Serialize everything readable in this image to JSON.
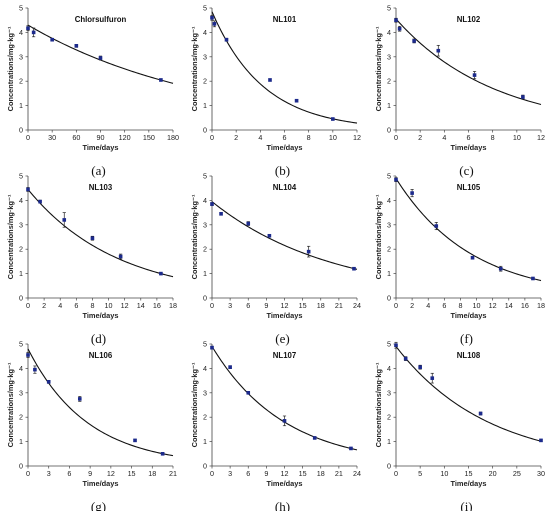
{
  "colors": {
    "fit_line": "#111111",
    "marker": "#1c2a8c",
    "axis": "#444444",
    "error_bar": "#222222"
  },
  "chart_data": [
    {
      "type": "scatter",
      "title": "Chlorsulfuron",
      "panel_label": "(a)",
      "xlabel": "Time/days",
      "ylabel": "Concentrations/mg·kg⁻¹",
      "xlim": [
        0,
        180
      ],
      "ylim": [
        0,
        5
      ],
      "xticks": [
        0,
        30,
        60,
        90,
        120,
        150,
        180
      ],
      "yticks": [
        0,
        1,
        2,
        3,
        4,
        5
      ],
      "points": [
        [
          0,
          4.17
        ],
        [
          7,
          4.0
        ],
        [
          30,
          3.7
        ],
        [
          60,
          3.45
        ],
        [
          90,
          2.95
        ],
        [
          165,
          2.05
        ]
      ],
      "errors": [
        0.1,
        0.18,
        0.05,
        0.06,
        0.08,
        0.05
      ],
      "fit": {
        "c0": 4.3,
        "k": 0.0045
      }
    },
    {
      "type": "scatter",
      "title": "NL101",
      "panel_label": "(b)",
      "xlabel": "Time/days",
      "ylabel": "Concentrations/mg·kg⁻¹",
      "xlim": [
        0,
        12
      ],
      "ylim": [
        0,
        5
      ],
      "xticks": [
        0,
        2,
        4,
        6,
        8,
        10,
        12
      ],
      "yticks": [
        0,
        1,
        2,
        3,
        4,
        5
      ],
      "points": [
        [
          0,
          4.6
        ],
        [
          0.2,
          4.35
        ],
        [
          1.2,
          3.7
        ],
        [
          4.8,
          2.05
        ],
        [
          7,
          1.2
        ],
        [
          10,
          0.45
        ]
      ],
      "errors": [
        0.1,
        0.12,
        0.06,
        0.05,
        0.05,
        0.04
      ],
      "fit": {
        "c0": 4.85,
        "k": 0.236
      }
    },
    {
      "type": "scatter",
      "title": "NL102",
      "panel_label": "(c)",
      "xlabel": "Time/days",
      "ylabel": "Concentrations/mg·kg⁻¹",
      "xlim": [
        0,
        12
      ],
      "ylim": [
        0,
        5
      ],
      "xticks": [
        0,
        2,
        4,
        6,
        8,
        10,
        12
      ],
      "yticks": [
        0,
        1,
        2,
        3,
        4,
        5
      ],
      "points": [
        [
          0,
          4.5
        ],
        [
          0.3,
          4.15
        ],
        [
          1.5,
          3.65
        ],
        [
          3.5,
          3.25
        ],
        [
          6.5,
          2.25
        ],
        [
          10.5,
          1.35
        ]
      ],
      "errors": [
        0.08,
        0.1,
        0.08,
        0.22,
        0.15,
        0.08
      ],
      "fit": {
        "c0": 4.55,
        "k": 0.1225
      }
    },
    {
      "type": "scatter",
      "title": "NL103",
      "panel_label": "(d)",
      "xlabel": "Time/days",
      "ylabel": "Concentrations/mg·kg⁻¹",
      "xlim": [
        0,
        18
      ],
      "ylim": [
        0,
        5
      ],
      "xticks": [
        0,
        2,
        4,
        6,
        8,
        10,
        12,
        14,
        16,
        18
      ],
      "yticks": [
        0,
        1,
        2,
        3,
        4,
        5
      ],
      "points": [
        [
          0,
          4.45
        ],
        [
          1.5,
          3.95
        ],
        [
          4.5,
          3.2
        ],
        [
          8,
          2.45
        ],
        [
          11.5,
          1.7
        ],
        [
          16.5,
          1.0
        ]
      ],
      "errors": [
        0.08,
        0.06,
        0.3,
        0.08,
        0.1,
        0.04
      ],
      "fit": {
        "c0": 4.45,
        "k": 0.0905
      }
    },
    {
      "type": "scatter",
      "title": "NL104",
      "panel_label": "(e)",
      "xlabel": "Time/days",
      "ylabel": "Concentrations/mg·kg⁻¹",
      "xlim": [
        0,
        24
      ],
      "ylim": [
        0,
        5
      ],
      "xticks": [
        0,
        3,
        6,
        9,
        12,
        15,
        18,
        21,
        24
      ],
      "yticks": [
        0,
        1,
        2,
        3,
        4,
        5
      ],
      "points": [
        [
          0,
          3.85
        ],
        [
          1.5,
          3.45
        ],
        [
          6,
          3.05
        ],
        [
          9.5,
          2.55
        ],
        [
          16,
          1.9
        ],
        [
          23.5,
          1.2
        ]
      ],
      "errors": [
        0.06,
        0.05,
        0.08,
        0.05,
        0.22,
        0.05
      ],
      "fit": {
        "c0": 3.95,
        "k": 0.0505
      }
    },
    {
      "type": "scatter",
      "title": "NL105",
      "panel_label": "(f)",
      "xlabel": "Time/days",
      "ylabel": "Concentrations/mg·kg⁻¹",
      "xlim": [
        0,
        18
      ],
      "ylim": [
        0,
        5
      ],
      "xticks": [
        0,
        2,
        4,
        6,
        8,
        10,
        12,
        14,
        16,
        18
      ],
      "yticks": [
        0,
        1,
        2,
        3,
        4,
        5
      ],
      "points": [
        [
          0,
          4.85
        ],
        [
          2,
          4.3
        ],
        [
          5,
          2.95
        ],
        [
          9.5,
          1.65
        ],
        [
          13,
          1.2
        ],
        [
          17,
          0.8
        ]
      ],
      "errors": [
        0.08,
        0.15,
        0.15,
        0.05,
        0.1,
        0.04
      ],
      "fit": {
        "c0": 4.9,
        "k": 0.107
      }
    },
    {
      "type": "scatter",
      "title": "NL106",
      "panel_label": "(g)",
      "xlabel": "Time/days",
      "ylabel": "Concentrations/mg·kg⁻¹",
      "xlim": [
        0,
        21
      ],
      "ylim": [
        0,
        5
      ],
      "xticks": [
        0,
        3,
        6,
        9,
        12,
        15,
        18,
        21
      ],
      "yticks": [
        0,
        1,
        2,
        3,
        4,
        5
      ],
      "points": [
        [
          0,
          4.55
        ],
        [
          1,
          3.95
        ],
        [
          3,
          3.45
        ],
        [
          7.5,
          2.75
        ],
        [
          15.5,
          1.05
        ],
        [
          19.5,
          0.5
        ]
      ],
      "errors": [
        0.1,
        0.15,
        0.06,
        0.1,
        0.04,
        0.04
      ],
      "fit": {
        "c0": 4.8,
        "k": 0.1155
      }
    },
    {
      "type": "scatter",
      "title": "NL107",
      "panel_label": "(h)",
      "xlabel": "Time/days",
      "ylabel": "Concentrations/mg·kg⁻¹",
      "xlim": [
        0,
        24
      ],
      "ylim": [
        0,
        5
      ],
      "xticks": [
        0,
        3,
        6,
        9,
        12,
        15,
        18,
        21,
        24
      ],
      "yticks": [
        0,
        1,
        2,
        3,
        4,
        5
      ],
      "points": [
        [
          0,
          4.85
        ],
        [
          3,
          4.05
        ],
        [
          6,
          3.0
        ],
        [
          12,
          1.85
        ],
        [
          17,
          1.15
        ],
        [
          23,
          0.72
        ]
      ],
      "errors": [
        0.06,
        0.06,
        0.05,
        0.2,
        0.05,
        0.04
      ],
      "fit": {
        "c0": 4.9,
        "k": 0.0835
      }
    },
    {
      "type": "scatter",
      "title": "NL108",
      "panel_label": "(i)",
      "xlabel": "Time/days",
      "ylabel": "Concentrations/mg·kg⁻¹",
      "xlim": [
        0,
        30
      ],
      "ylim": [
        0,
        5
      ],
      "xticks": [
        0,
        5,
        10,
        15,
        20,
        25,
        30
      ],
      "yticks": [
        0,
        1,
        2,
        3,
        4,
        5
      ],
      "points": [
        [
          0,
          4.95
        ],
        [
          2,
          4.4
        ],
        [
          5,
          4.05
        ],
        [
          7.5,
          3.6
        ],
        [
          17.5,
          2.15
        ],
        [
          30,
          1.05
        ]
      ],
      "errors": [
        0.12,
        0.08,
        0.08,
        0.2,
        0.06,
        0.04
      ],
      "fit": {
        "c0": 4.9,
        "k": 0.0525
      }
    }
  ]
}
